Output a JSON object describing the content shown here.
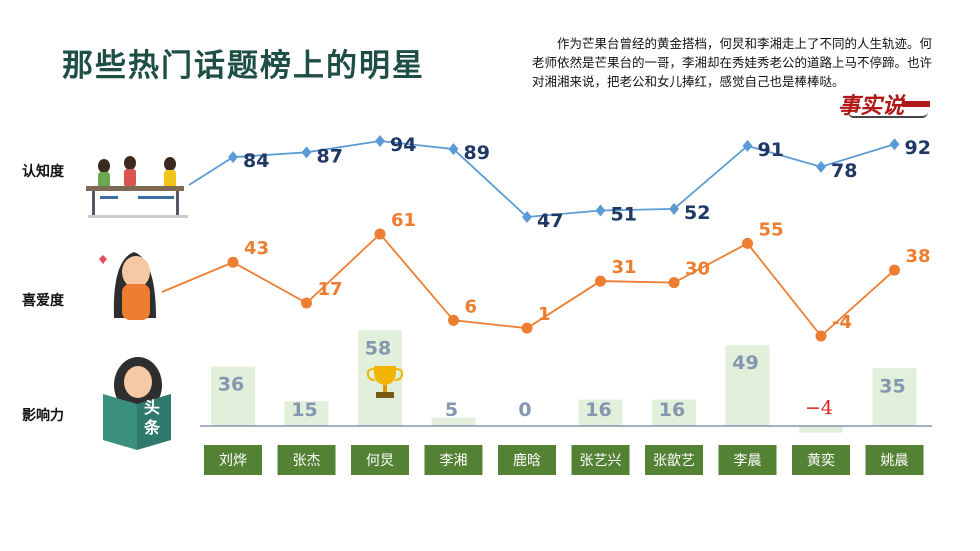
{
  "title": "那些热门话题榜上的明星",
  "description": "作为芒果台曾经的黄金搭档，何炅和李湘走上了不同的人生轨迹。何老师依然是芒果台的一哥，李湘却在秀娃秀老公的道路上马不停蹄。也许对湘湘来说，把老公和女儿捧红，感觉自己也是棒棒哒。",
  "logo_text": "事实说",
  "row_labels": {
    "awareness": "认知度",
    "liking": "喜爱度",
    "influence": "影响力"
  },
  "badge": {
    "text": "头条"
  },
  "colors": {
    "awareness": "#5b9bd5",
    "awareness_label": "#1f3864",
    "liking": "#ed7d31",
    "bar": "#e2efda",
    "bar_label": "#8497b0",
    "negative": "#e02020",
    "name_box": "#548235"
  },
  "chart_data": {
    "type": "line",
    "categories": [
      "刘烨",
      "张杰",
      "何炅",
      "李湘",
      "鹿晗",
      "张艺兴",
      "张歆艺",
      "李晨",
      "黄奕",
      "姚晨"
    ],
    "series": [
      {
        "name": "认知度",
        "type": "line",
        "values": [
          84,
          87,
          94,
          89,
          47,
          51,
          52,
          91,
          78,
          92
        ]
      },
      {
        "name": "喜爱度",
        "type": "line",
        "values": [
          43,
          17,
          61,
          6,
          1,
          31,
          30,
          55,
          -4,
          38
        ]
      },
      {
        "name": "影响力",
        "type": "bar",
        "values": [
          36,
          15,
          58,
          5,
          0,
          16,
          16,
          49,
          -4,
          35
        ]
      }
    ],
    "annotations": [
      {
        "category": "何炅",
        "icon": "trophy-icon"
      }
    ]
  }
}
